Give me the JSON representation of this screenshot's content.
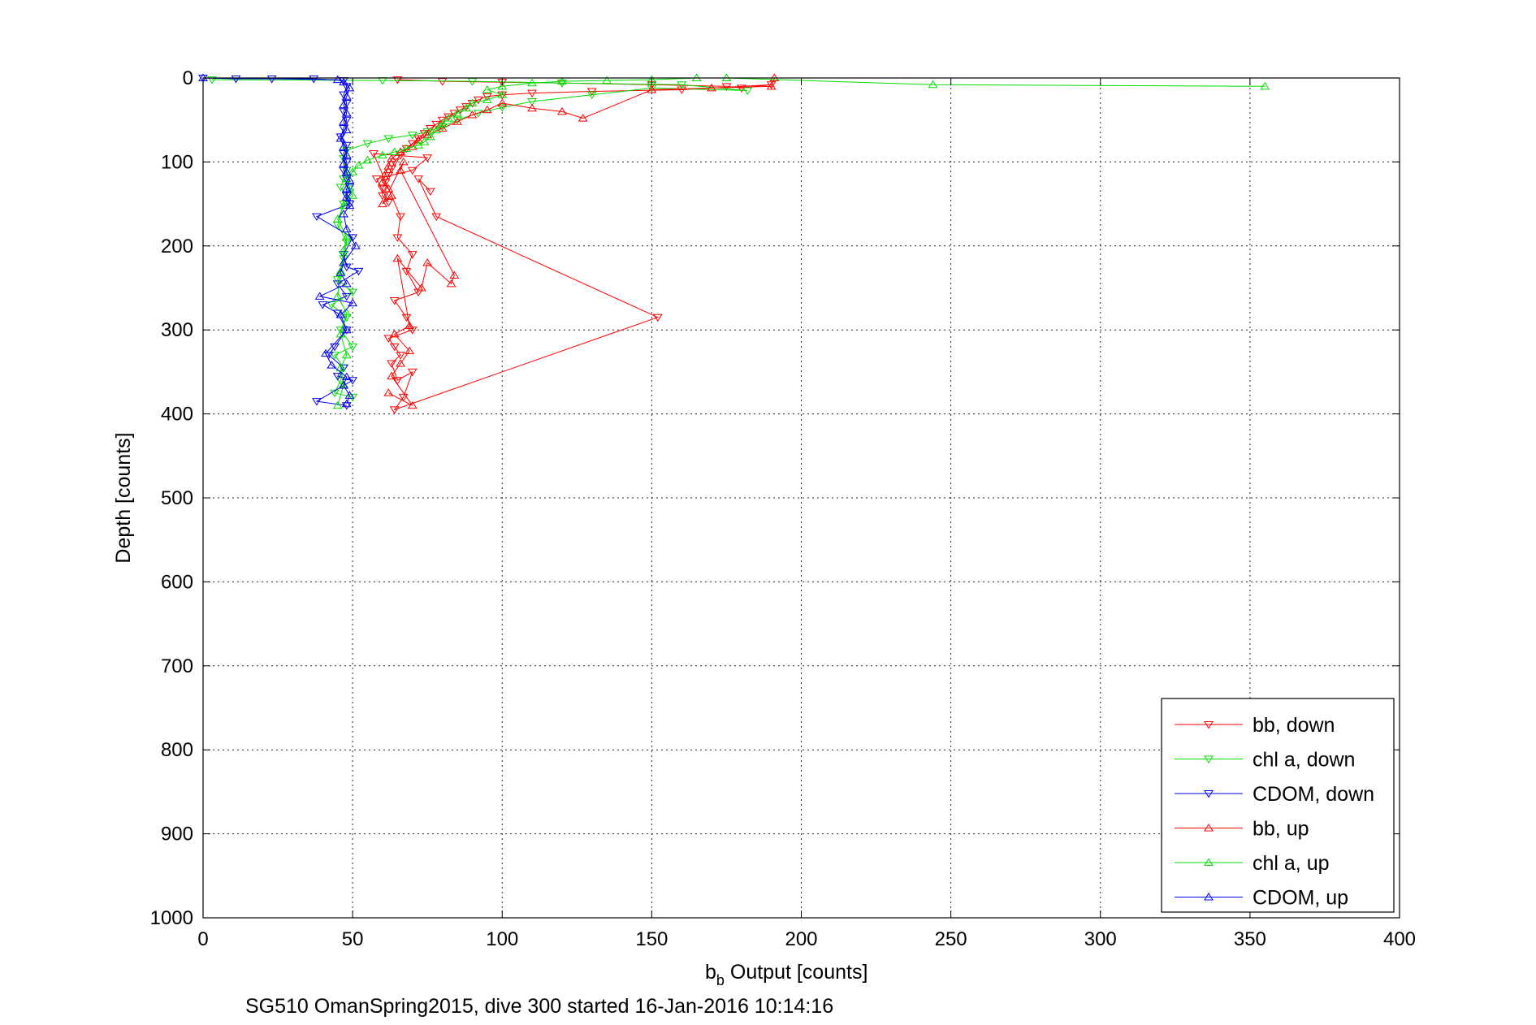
{
  "chart_data": {
    "type": "scatter",
    "xlabel_main": "b",
    "xlabel_sub": "b",
    "xlabel_rest": " Output [counts]",
    "ylabel": "Depth [counts]",
    "caption": "SG510 OmanSpring2015, dive 300 started 16-Jan-2016 10:14:16",
    "xlim": [
      0,
      400
    ],
    "ylim": [
      0,
      1000
    ],
    "y_reversed": true,
    "grid": true,
    "legend_position": "bottom-right",
    "xticks": [
      "0",
      "50",
      "100",
      "150",
      "200",
      "250",
      "300",
      "350",
      "400"
    ],
    "yticks": [
      "0",
      "100",
      "200",
      "300",
      "400",
      "500",
      "600",
      "700",
      "800",
      "900",
      "1000"
    ],
    "series": [
      {
        "name": "bb, down",
        "color": "#ff0000",
        "marker": "triangle-down",
        "points": [
          [
            65,
            2
          ],
          [
            80,
            4
          ],
          [
            100,
            5
          ],
          [
            120,
            6
          ],
          [
            150,
            8
          ],
          [
            175,
            10
          ],
          [
            180,
            12
          ],
          [
            190,
            8
          ],
          [
            160,
            14
          ],
          [
            130,
            16
          ],
          [
            110,
            18
          ],
          [
            100,
            20
          ],
          [
            95,
            22
          ],
          [
            92,
            26
          ],
          [
            90,
            30
          ],
          [
            88,
            34
          ],
          [
            86,
            38
          ],
          [
            84,
            42
          ],
          [
            82,
            46
          ],
          [
            80,
            50
          ],
          [
            78,
            55
          ],
          [
            76,
            60
          ],
          [
            74,
            66
          ],
          [
            72,
            72
          ],
          [
            70,
            78
          ],
          [
            68,
            84
          ],
          [
            66,
            92
          ],
          [
            64,
            100
          ],
          [
            63,
            108
          ],
          [
            62,
            116
          ],
          [
            61,
            124
          ],
          [
            60,
            132
          ],
          [
            60,
            140
          ],
          [
            62,
            148
          ],
          [
            58,
            120
          ],
          [
            70,
            110
          ],
          [
            75,
            95
          ],
          [
            57,
            90
          ],
          [
            66,
            165
          ],
          [
            65,
            190
          ],
          [
            70,
            210
          ],
          [
            68,
            230
          ],
          [
            72,
            255
          ],
          [
            64,
            265
          ],
          [
            68,
            285
          ],
          [
            70,
            300
          ],
          [
            62,
            310
          ],
          [
            64,
            320
          ],
          [
            66,
            330
          ],
          [
            63,
            340
          ],
          [
            65,
            360
          ],
          [
            70,
            350
          ],
          [
            67,
            380
          ],
          [
            64,
            395
          ],
          [
            152,
            285
          ],
          [
            78,
            165
          ],
          [
            72,
            120
          ],
          [
            76,
            135
          ]
        ]
      },
      {
        "name": "chl a, down",
        "color": "#00dd00",
        "marker": "triangle-down",
        "points": [
          [
            3,
            2
          ],
          [
            60,
            3
          ],
          [
            90,
            4
          ],
          [
            120,
            6
          ],
          [
            160,
            8
          ],
          [
            182,
            15
          ],
          [
            150,
            12
          ],
          [
            130,
            20
          ],
          [
            110,
            28
          ],
          [
            100,
            35
          ],
          [
            92,
            42
          ],
          [
            85,
            50
          ],
          [
            80,
            58
          ],
          [
            75,
            64
          ],
          [
            70,
            68
          ],
          [
            62,
            72
          ],
          [
            55,
            78
          ],
          [
            48,
            86
          ],
          [
            47,
            96
          ],
          [
            48,
            110
          ],
          [
            47,
            120
          ],
          [
            46,
            130
          ],
          [
            48,
            140
          ],
          [
            47,
            150
          ],
          [
            45,
            175
          ],
          [
            48,
            195
          ],
          [
            47,
            215
          ],
          [
            45,
            240
          ],
          [
            50,
            255
          ],
          [
            43,
            270
          ],
          [
            48,
            285
          ],
          [
            46,
            300
          ],
          [
            50,
            320
          ],
          [
            44,
            330
          ],
          [
            47,
            345
          ],
          [
            46,
            360
          ],
          [
            44,
            375
          ],
          [
            50,
            380
          ]
        ]
      },
      {
        "name": "CDOM, down",
        "color": "#0000ee",
        "marker": "triangle-down",
        "points": [
          [
            0,
            0
          ],
          [
            11,
            1
          ],
          [
            23,
            1
          ],
          [
            37,
            1
          ],
          [
            47,
            3
          ],
          [
            48,
            10
          ],
          [
            47,
            20
          ],
          [
            48,
            30
          ],
          [
            47,
            40
          ],
          [
            48,
            50
          ],
          [
            47,
            60
          ],
          [
            46,
            70
          ],
          [
            48,
            80
          ],
          [
            47,
            90
          ],
          [
            48,
            100
          ],
          [
            47,
            110
          ],
          [
            48,
            120
          ],
          [
            49,
            130
          ],
          [
            48,
            140
          ],
          [
            49,
            150
          ],
          [
            38,
            165
          ],
          [
            50,
            190
          ],
          [
            47,
            210
          ],
          [
            48,
            225
          ],
          [
            52,
            230
          ],
          [
            45,
            245
          ],
          [
            48,
            260
          ],
          [
            40,
            270
          ],
          [
            45,
            280
          ],
          [
            48,
            300
          ],
          [
            44,
            320
          ],
          [
            42,
            330
          ],
          [
            47,
            345
          ],
          [
            45,
            355
          ],
          [
            50,
            360
          ],
          [
            38,
            385
          ],
          [
            48,
            390
          ]
        ]
      },
      {
        "name": "bb, up",
        "color": "#ff0000",
        "marker": "triangle-up",
        "points": [
          [
            191,
            0
          ],
          [
            190,
            10
          ],
          [
            170,
            12
          ],
          [
            150,
            14
          ],
          [
            127,
            48
          ],
          [
            120,
            40
          ],
          [
            110,
            36
          ],
          [
            100,
            30
          ],
          [
            95,
            38
          ],
          [
            90,
            44
          ],
          [
            85,
            52
          ],
          [
            80,
            60
          ],
          [
            75,
            68
          ],
          [
            72,
            74
          ],
          [
            70,
            82
          ],
          [
            66,
            88
          ],
          [
            63,
            96
          ],
          [
            62,
            105
          ],
          [
            61,
            114
          ],
          [
            60,
            124
          ],
          [
            62,
            132
          ],
          [
            63,
            140
          ],
          [
            60,
            150
          ],
          [
            67,
            100
          ],
          [
            66,
            110
          ],
          [
            84,
            235
          ],
          [
            83,
            245
          ],
          [
            75,
            220
          ],
          [
            73,
            250
          ],
          [
            65,
            215
          ],
          [
            69,
            295
          ],
          [
            64,
            305
          ],
          [
            69,
            325
          ],
          [
            66,
            340
          ],
          [
            63,
            355
          ],
          [
            70,
            390
          ],
          [
            62,
            375
          ]
        ]
      },
      {
        "name": "chl a, up",
        "color": "#00dd00",
        "marker": "triangle-up",
        "points": [
          [
            355,
            10
          ],
          [
            244,
            8
          ],
          [
            175,
            0
          ],
          [
            165,
            0
          ],
          [
            150,
            2
          ],
          [
            135,
            3
          ],
          [
            120,
            4
          ],
          [
            110,
            6
          ],
          [
            100,
            10
          ],
          [
            95,
            14
          ],
          [
            100,
            20
          ],
          [
            95,
            26
          ],
          [
            90,
            30
          ],
          [
            88,
            36
          ],
          [
            85,
            42
          ],
          [
            82,
            48
          ],
          [
            80,
            55
          ],
          [
            78,
            62
          ],
          [
            76,
            70
          ],
          [
            74,
            76
          ],
          [
            72,
            80
          ],
          [
            68,
            84
          ],
          [
            64,
            88
          ],
          [
            60,
            92
          ],
          [
            55,
            98
          ],
          [
            52,
            104
          ],
          [
            50,
            112
          ],
          [
            48,
            120
          ],
          [
            49,
            130
          ],
          [
            50,
            140
          ],
          [
            47,
            152
          ],
          [
            45,
            168
          ],
          [
            48,
            190
          ],
          [
            47,
            205
          ],
          [
            46,
            230
          ],
          [
            45,
            260
          ],
          [
            48,
            280
          ],
          [
            46,
            305
          ],
          [
            48,
            330
          ],
          [
            46,
            345
          ],
          [
            47,
            365
          ],
          [
            45,
            390
          ]
        ]
      },
      {
        "name": "CDOM, up",
        "color": "#0000ee",
        "marker": "triangle-up",
        "points": [
          [
            0,
            0
          ],
          [
            45,
            2
          ],
          [
            47,
            5
          ],
          [
            49,
            12
          ],
          [
            48,
            22
          ],
          [
            47,
            32
          ],
          [
            48,
            42
          ],
          [
            47,
            52
          ],
          [
            48,
            62
          ],
          [
            46,
            72
          ],
          [
            47,
            82
          ],
          [
            48,
            92
          ],
          [
            47,
            102
          ],
          [
            48,
            112
          ],
          [
            49,
            122
          ],
          [
            48,
            132
          ],
          [
            48,
            142
          ],
          [
            49,
            152
          ],
          [
            47,
            162
          ],
          [
            48,
            180
          ],
          [
            51,
            200
          ],
          [
            47,
            220
          ],
          [
            46,
            232
          ],
          [
            48,
            245
          ],
          [
            39,
            260
          ],
          [
            50,
            268
          ],
          [
            46,
            282
          ],
          [
            48,
            300
          ],
          [
            41,
            328
          ],
          [
            43,
            342
          ],
          [
            48,
            356
          ],
          [
            47,
            366
          ],
          [
            49,
            378
          ],
          [
            48,
            388
          ]
        ]
      }
    ]
  }
}
